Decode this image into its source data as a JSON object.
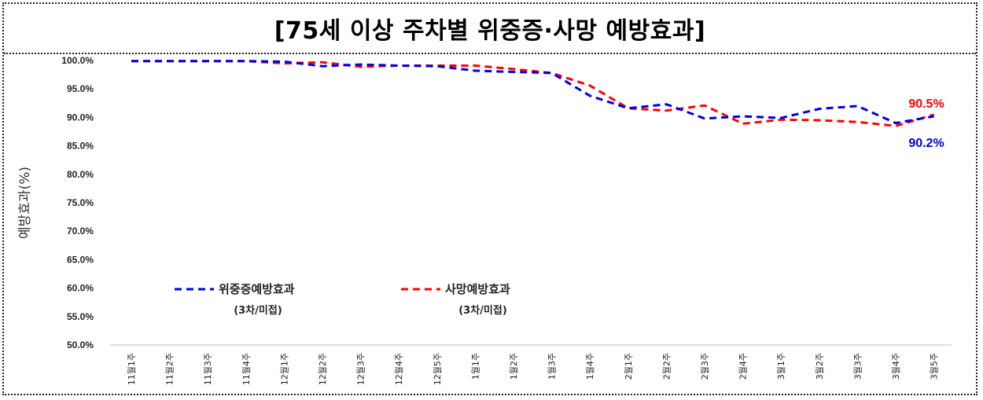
{
  "chart_data": {
    "type": "line",
    "title": "[75세 이상 주차별 위중증·사망 예방효과]",
    "ylabel": "예방효과(%)",
    "ylim": [
      50,
      100
    ],
    "yticks": [
      "100.0%",
      "95.0%",
      "90.0%",
      "85.0%",
      "80.0%",
      "75.0%",
      "70.0%",
      "65.0%",
      "60.0%",
      "55.0%",
      "50.0%"
    ],
    "categories": [
      "11월1주",
      "11월2주",
      "11월3주",
      "11월4주",
      "12월1주",
      "12월2주",
      "12월3주",
      "12월4주",
      "12월5주",
      "1월1주",
      "1월2주",
      "1월3주",
      "1월4주",
      "2월1주",
      "2월2주",
      "2월3주",
      "2월4주",
      "3월1주",
      "3월2주",
      "3월3주",
      "3월4주",
      "3월5주"
    ],
    "series": [
      {
        "name": "위중증예방효과",
        "sub": "(3차/미접)",
        "color": "#0000e0",
        "values": [
          99.9,
          99.9,
          99.9,
          99.9,
          99.8,
          99.0,
          99.3,
          99.1,
          99.0,
          98.2,
          98.0,
          97.8,
          93.8,
          91.6,
          92.3,
          89.8,
          90.2,
          89.9,
          91.5,
          92.0,
          89.0,
          90.2
        ]
      },
      {
        "name": "사망예방효과",
        "sub": "(3차/미접)",
        "color": "#ff0000",
        "values": [
          99.9,
          99.9,
          99.9,
          99.9,
          99.5,
          99.7,
          98.9,
          99.1,
          99.1,
          99.1,
          98.5,
          97.8,
          95.6,
          91.6,
          91.2,
          92.1,
          88.9,
          89.6,
          89.5,
          89.2,
          88.5,
          90.5
        ]
      }
    ],
    "annotations": [
      {
        "text": "90.5%",
        "color": "#ff0000"
      },
      {
        "text": "90.2%",
        "color": "#0000e0"
      }
    ],
    "grid": false,
    "legend": "center-left"
  }
}
